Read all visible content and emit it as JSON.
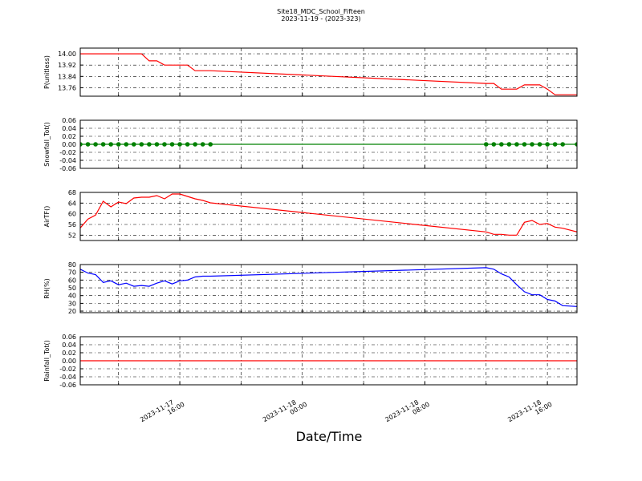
{
  "title": "Site18_MDC_School_Fifteen",
  "subtitle": "2023-11-19 - (2023-323)",
  "x_label": "Date/Time",
  "xlim": [
    "2023-11-17 09:30",
    "2023-11-18 17:56"
  ],
  "xticks": [
    "2023-11-17 16:00",
    "2023-11-18 00:00",
    "2023-11-18 08:00",
    "2023-11-18 16:00"
  ],
  "xminorticks": [
    "2023-11-17 12:00",
    "2023-11-17 20:00",
    "2023-11-18 04:00",
    "2023-11-18 12:00"
  ],
  "chart_data": [
    {
      "type": "line",
      "y_label": "P(unitless)",
      "color": "#ff0000",
      "grid": true,
      "x": [
        "2023-11-17 09:30",
        "2023-11-17 10:00",
        "2023-11-17 10:30",
        "2023-11-17 11:00",
        "2023-11-17 11:30",
        "2023-11-17 12:00",
        "2023-11-17 12:30",
        "2023-11-17 13:00",
        "2023-11-17 13:30",
        "2023-11-17 14:00",
        "2023-11-17 14:30",
        "2023-11-17 15:00",
        "2023-11-17 15:30",
        "2023-11-17 16:00",
        "2023-11-17 16:30",
        "2023-11-17 17:00",
        "2023-11-17 17:30",
        "2023-11-17 18:00",
        "2023-11-18 12:00",
        "2023-11-18 12:30",
        "2023-11-18 13:00",
        "2023-11-18 13:30",
        "2023-11-18 14:00",
        "2023-11-18 14:30",
        "2023-11-18 15:00",
        "2023-11-18 15:30",
        "2023-11-18 16:00",
        "2023-11-18 16:30",
        "2023-11-18 17:00",
        "2023-11-18 17:56"
      ],
      "values": [
        14.0,
        14.0,
        14.0,
        14.0,
        14.0,
        14.0,
        14.0,
        14.0,
        14.0,
        13.95,
        13.95,
        13.92,
        13.92,
        13.92,
        13.92,
        13.88,
        13.88,
        13.88,
        13.79,
        13.79,
        13.75,
        13.75,
        13.75,
        13.78,
        13.78,
        13.78,
        13.75,
        13.71,
        13.71,
        13.71
      ],
      "ylim": [
        13.7,
        14.04
      ],
      "yticks": [
        {
          "value": 14,
          "label": "14.00"
        },
        13.92,
        13.84,
        13.76
      ]
    },
    {
      "type": "line",
      "y_label": "Snowfall_Tot()",
      "color": "#008000",
      "marker": true,
      "grid": true,
      "x": [
        "2023-11-17 09:30",
        "2023-11-17 10:00",
        "2023-11-17 10:30",
        "2023-11-17 11:00",
        "2023-11-17 11:30",
        "2023-11-17 12:00",
        "2023-11-17 12:30",
        "2023-11-17 13:00",
        "2023-11-17 13:30",
        "2023-11-17 14:00",
        "2023-11-17 14:30",
        "2023-11-17 15:00",
        "2023-11-17 15:30",
        "2023-11-17 16:00",
        "2023-11-17 16:30",
        "2023-11-17 17:00",
        "2023-11-17 17:30",
        "2023-11-17 18:00",
        "2023-11-18 12:00",
        "2023-11-18 12:30",
        "2023-11-18 13:00",
        "2023-11-18 13:30",
        "2023-11-18 14:00",
        "2023-11-18 14:30",
        "2023-11-18 15:00",
        "2023-11-18 15:30",
        "2023-11-18 16:00",
        "2023-11-18 16:30",
        "2023-11-18 17:00",
        "2023-11-18 17:56"
      ],
      "values": [
        0,
        0,
        0,
        0,
        0,
        0,
        0,
        0,
        0,
        0,
        0,
        0,
        0,
        0,
        0,
        0,
        0,
        0,
        0,
        0,
        0,
        0,
        0,
        0,
        0,
        0,
        0,
        0,
        0,
        0
      ],
      "ylim": [
        -0.06,
        0.06
      ],
      "yticks": [
        0.06,
        0.04,
        0.02,
        {
          "value": 0,
          "label": "0.00"
        },
        -0.02,
        -0.04,
        -0.06
      ]
    },
    {
      "type": "line",
      "y_label": "AirTF()",
      "color": "#ff0000",
      "grid": true,
      "x": [
        "2023-11-17 09:30",
        "2023-11-17 10:00",
        "2023-11-17 10:30",
        "2023-11-17 11:00",
        "2023-11-17 11:30",
        "2023-11-17 12:00",
        "2023-11-17 12:30",
        "2023-11-17 13:00",
        "2023-11-17 13:30",
        "2023-11-17 14:00",
        "2023-11-17 14:30",
        "2023-11-17 15:00",
        "2023-11-17 15:30",
        "2023-11-17 16:00",
        "2023-11-17 16:30",
        "2023-11-17 17:00",
        "2023-11-17 17:30",
        "2023-11-17 18:00",
        "2023-11-18 12:00",
        "2023-11-18 12:30",
        "2023-11-18 13:00",
        "2023-11-18 13:30",
        "2023-11-18 14:00",
        "2023-11-18 14:30",
        "2023-11-18 15:00",
        "2023-11-18 15:30",
        "2023-11-18 16:00",
        "2023-11-18 16:30",
        "2023-11-18 17:00",
        "2023-11-18 17:56"
      ],
      "values": [
        54.7,
        58,
        59.5,
        64.7,
        62.6,
        64.4,
        63.8,
        65.9,
        66.2,
        66.2,
        66.8,
        65.6,
        67.4,
        67.4,
        66.5,
        65.6,
        65,
        64.1,
        53.2,
        52.3,
        52.3,
        52,
        52,
        56.8,
        57.5,
        56,
        56.4,
        55,
        54.6,
        53.2
      ],
      "ylim": [
        50,
        68
      ],
      "yticks": [
        68,
        64,
        60,
        56,
        52
      ]
    },
    {
      "type": "line",
      "y_label": "RH(%)",
      "color": "#0000ff",
      "grid": true,
      "x": [
        "2023-11-17 09:30",
        "2023-11-17 10:00",
        "2023-11-17 10:30",
        "2023-11-17 11:00",
        "2023-11-17 11:30",
        "2023-11-17 12:00",
        "2023-11-17 12:30",
        "2023-11-17 13:00",
        "2023-11-17 13:30",
        "2023-11-17 14:00",
        "2023-11-17 14:30",
        "2023-11-17 15:00",
        "2023-11-17 15:30",
        "2023-11-17 16:00",
        "2023-11-17 16:30",
        "2023-11-17 17:00",
        "2023-11-17 17:30",
        "2023-11-17 18:00",
        "2023-11-18 12:00",
        "2023-11-18 12:30",
        "2023-11-18 13:00",
        "2023-11-18 13:30",
        "2023-11-18 14:00",
        "2023-11-18 14:30",
        "2023-11-18 15:00",
        "2023-11-18 15:30",
        "2023-11-18 16:00",
        "2023-11-18 16:30",
        "2023-11-18 17:00",
        "2023-11-18 17:56"
      ],
      "values": [
        74,
        69,
        67,
        57,
        59,
        54,
        56,
        52,
        53,
        52,
        56,
        59,
        55,
        59,
        60,
        64,
        65,
        65,
        76,
        74,
        68,
        64,
        54,
        45,
        41,
        41,
        35,
        33,
        27,
        26
      ],
      "ylim": [
        18,
        80
      ],
      "yticks": [
        80,
        70,
        60,
        50,
        40,
        30,
        20
      ]
    },
    {
      "type": "line",
      "y_label": "Rainfall_Tot()",
      "color": "#ff0000",
      "grid": true,
      "x": [
        "2023-11-17 09:30",
        "2023-11-17 10:00",
        "2023-11-17 10:30",
        "2023-11-17 11:00",
        "2023-11-17 11:30",
        "2023-11-17 12:00",
        "2023-11-17 12:30",
        "2023-11-17 13:00",
        "2023-11-17 13:30",
        "2023-11-17 14:00",
        "2023-11-17 14:30",
        "2023-11-17 15:00",
        "2023-11-17 15:30",
        "2023-11-17 16:00",
        "2023-11-17 16:30",
        "2023-11-17 17:00",
        "2023-11-17 17:30",
        "2023-11-17 18:00",
        "2023-11-18 12:00",
        "2023-11-18 12:30",
        "2023-11-18 13:00",
        "2023-11-18 13:30",
        "2023-11-18 14:00",
        "2023-11-18 14:30",
        "2023-11-18 15:00",
        "2023-11-18 15:30",
        "2023-11-18 16:00",
        "2023-11-18 16:30",
        "2023-11-18 17:00",
        "2023-11-18 17:56"
      ],
      "values": [
        0,
        0,
        0,
        0,
        0,
        0,
        0,
        0,
        0,
        0,
        0,
        0,
        0,
        0,
        0,
        0,
        0,
        0,
        0,
        0,
        0,
        0,
        0,
        0,
        0,
        0,
        0,
        0,
        0,
        0
      ],
      "ylim": [
        -0.06,
        0.06
      ],
      "yticks": [
        0.06,
        0.04,
        0.02,
        {
          "value": 0,
          "label": "0.00"
        },
        -0.02,
        -0.04,
        -0.06
      ]
    }
  ]
}
